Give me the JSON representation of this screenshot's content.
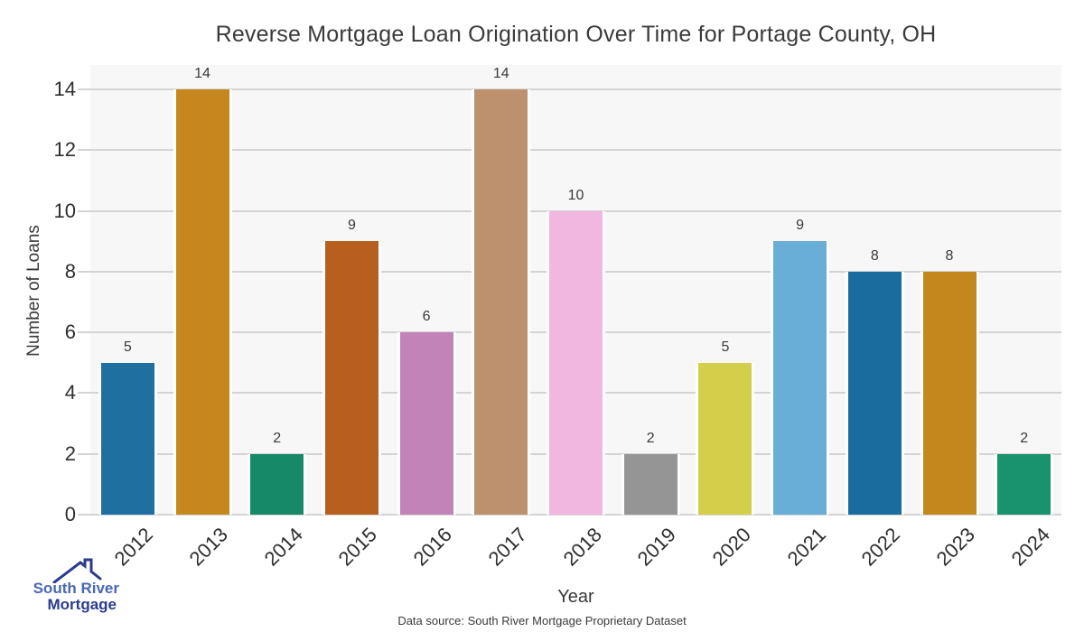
{
  "chart_data": {
    "type": "bar",
    "title": "Reverse Mortgage Loan Origination Over Time for Portage County, OH",
    "xlabel": "Year",
    "ylabel": "Number of Loans",
    "categories": [
      "2012",
      "2013",
      "2014",
      "2015",
      "2016",
      "2017",
      "2018",
      "2019",
      "2020",
      "2021",
      "2022",
      "2023",
      "2024"
    ],
    "values": [
      5,
      14,
      2,
      9,
      6,
      14,
      10,
      2,
      5,
      9,
      8,
      8,
      2
    ],
    "bar_colors": [
      "#1f6fa0",
      "#c6871e",
      "#168a68",
      "#b75f1e",
      "#c284b8",
      "#bd916e",
      "#f2b7e0",
      "#959595",
      "#d3cf4a",
      "#68aed6",
      "#1a6b9e",
      "#c3871d",
      "#18936e"
    ],
    "value_labels": [
      "5",
      "14",
      "2",
      "9",
      "6",
      "14",
      "10",
      "2",
      "5",
      "9",
      "8",
      "8",
      "2"
    ],
    "yticks": [
      0,
      2,
      4,
      6,
      8,
      10,
      12,
      14
    ],
    "ylim": [
      0,
      14.8
    ],
    "grid": "horizontal",
    "legend": "none",
    "panel_bg": "#f7f7f7",
    "gridline_color": "#d4d4d4"
  },
  "footer": {
    "source": "Data source: South River Mortgage Proprietary Dataset"
  },
  "logo": {
    "line1": "South River",
    "line2": "Mortgage",
    "line1_color": "#4a67b3",
    "line2_color": "#2b3a8e",
    "roof_color": "#2b3a8e"
  }
}
